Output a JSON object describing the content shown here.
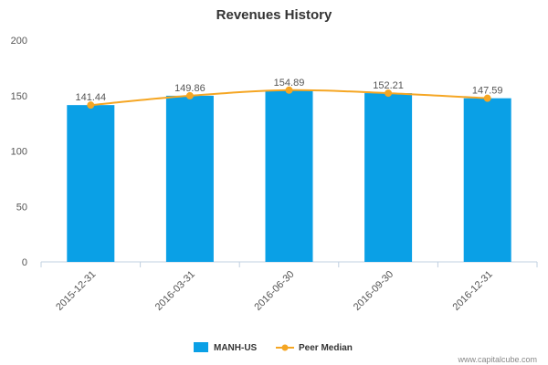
{
  "chart_data": {
    "type": "bar",
    "title": "Revenues History",
    "xlabel": "",
    "ylabel": "",
    "ylim": [
      0,
      200
    ],
    "yticks": [
      0,
      50,
      100,
      150,
      200
    ],
    "grid": false,
    "categories": [
      "2015-12-31",
      "2016-03-31",
      "2016-06-30",
      "2016-09-30",
      "2016-12-31"
    ],
    "series": [
      {
        "name": "MANH-US",
        "type": "bar",
        "color": "#0aa0e6",
        "values": [
          141.44,
          149.86,
          154.89,
          152.21,
          147.59
        ],
        "labels": [
          "141.44",
          "149.86",
          "154.89",
          "152.21",
          "147.59"
        ]
      },
      {
        "name": "Peer Median",
        "type": "line",
        "color": "#f5a623",
        "values": [
          141.44,
          149.86,
          154.89,
          152.21,
          147.59
        ]
      }
    ],
    "legend_position": "bottom-center"
  },
  "credit": "www.capitalcube.com"
}
